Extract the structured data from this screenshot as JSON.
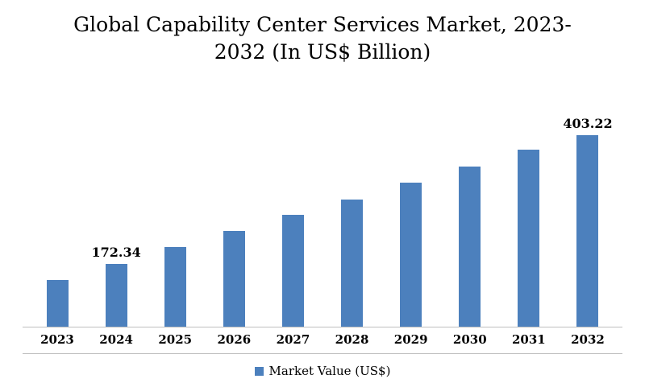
{
  "title_line1": "Global Capability Center Services Market, 2023-",
  "title_line2": "2032 (In US$ Billion)",
  "legend": {
    "label": "Market Value (US$)",
    "color": "#4c80bd"
  },
  "chart_data": {
    "type": "bar",
    "title": "Global Capability Center Services Market, 2023-2032 (In US$ Billion)",
    "categories": [
      "2023",
      "2024",
      "2025",
      "2026",
      "2027",
      "2028",
      "2029",
      "2030",
      "2031",
      "2032"
    ],
    "values": [
      143,
      172.34,
      203,
      232,
      260,
      288,
      318,
      346,
      377,
      403.22
    ],
    "data_labels": [
      "",
      "172.34",
      "",
      "",
      "",
      "",
      "",
      "",
      "",
      "403.22"
    ],
    "xlabel": "",
    "ylabel": "Market Value (US$ Billion)",
    "ylim": [
      60,
      420
    ],
    "grid": false,
    "legend_position": "bottom",
    "bar_color": "#4c80bd",
    "axis_line_color": "#bfbfbf"
  }
}
